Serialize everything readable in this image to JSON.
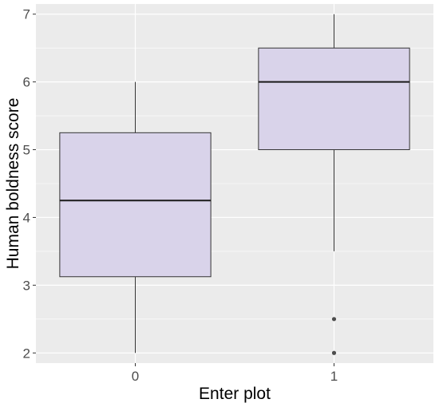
{
  "chart_data": {
    "type": "box",
    "xlabel": "Enter plot",
    "ylabel": "Human boldness score",
    "categories": [
      "0",
      "1"
    ],
    "boxes": [
      {
        "category": "0",
        "whisker_low": 2,
        "q1": 3.125,
        "median": 4.25,
        "q3": 5.25,
        "whisker_high": 6,
        "outliers": []
      },
      {
        "category": "1",
        "whisker_low": 3.5,
        "q1": 5.0,
        "median": 6.0,
        "q3": 6.5,
        "whisker_high": 7,
        "outliers": [
          2.5,
          2.0
        ]
      }
    ],
    "ylim": [
      1.85,
      7.15
    ],
    "yticks": [
      2,
      3,
      4,
      5,
      6,
      7
    ],
    "grid": true,
    "colors": {
      "panel_background": "#ebebeb",
      "grid": "#ffffff",
      "box_fill": "#d9d3ea",
      "box_stroke": "#333333",
      "median": "#1a1a1a",
      "outlier": "#4d4d4d"
    }
  }
}
